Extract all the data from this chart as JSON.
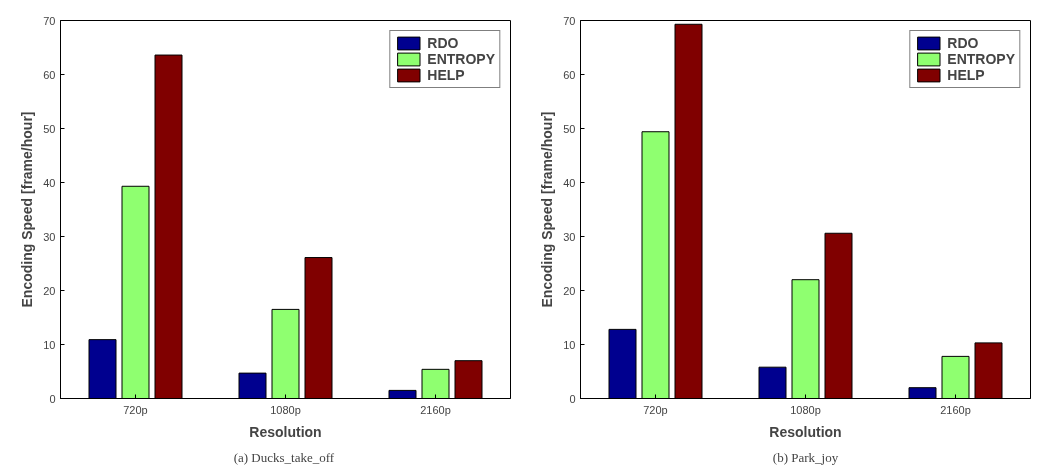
{
  "chart_data": [
    {
      "type": "bar",
      "xlabel": "Resolution",
      "ylabel": "Encoding Speed [frame/hour]",
      "categories": [
        "720p",
        "1080p",
        "2160p"
      ],
      "series": [
        {
          "name": "RDO",
          "color": "#00008f",
          "values": [
            10.9,
            4.7,
            1.5
          ]
        },
        {
          "name": "ENTROPY",
          "color": "#8fff70",
          "values": [
            39.3,
            16.5,
            5.4
          ]
        },
        {
          "name": "HELP",
          "color": "#800000",
          "values": [
            63.6,
            26.1,
            7.0
          ]
        }
      ],
      "ylim": [
        0,
        70
      ],
      "yticks": [
        0,
        10,
        20,
        30,
        40,
        50,
        60,
        70
      ],
      "grid": false,
      "legend": "top right",
      "annotations": [
        "(a)  Ducks_take_off"
      ]
    },
    {
      "type": "bar",
      "xlabel": "Resolution",
      "ylabel": "Encoding Speed [frame/hour]",
      "categories": [
        "720p",
        "1080p",
        "2160p"
      ],
      "series": [
        {
          "name": "RDO",
          "color": "#00008f",
          "values": [
            12.8,
            5.8,
            2.0
          ]
        },
        {
          "name": "ENTROPY",
          "color": "#8fff70",
          "values": [
            49.4,
            22.0,
            7.8
          ]
        },
        {
          "name": "HELP",
          "color": "#800000",
          "values": [
            69.3,
            30.6,
            10.3
          ]
        }
      ],
      "ylim": [
        0,
        70
      ],
      "yticks": [
        0,
        10,
        20,
        30,
        40,
        50,
        60,
        70
      ],
      "grid": false,
      "legend": "top right",
      "annotations": [
        "(b) Park_joy"
      ]
    }
  ]
}
